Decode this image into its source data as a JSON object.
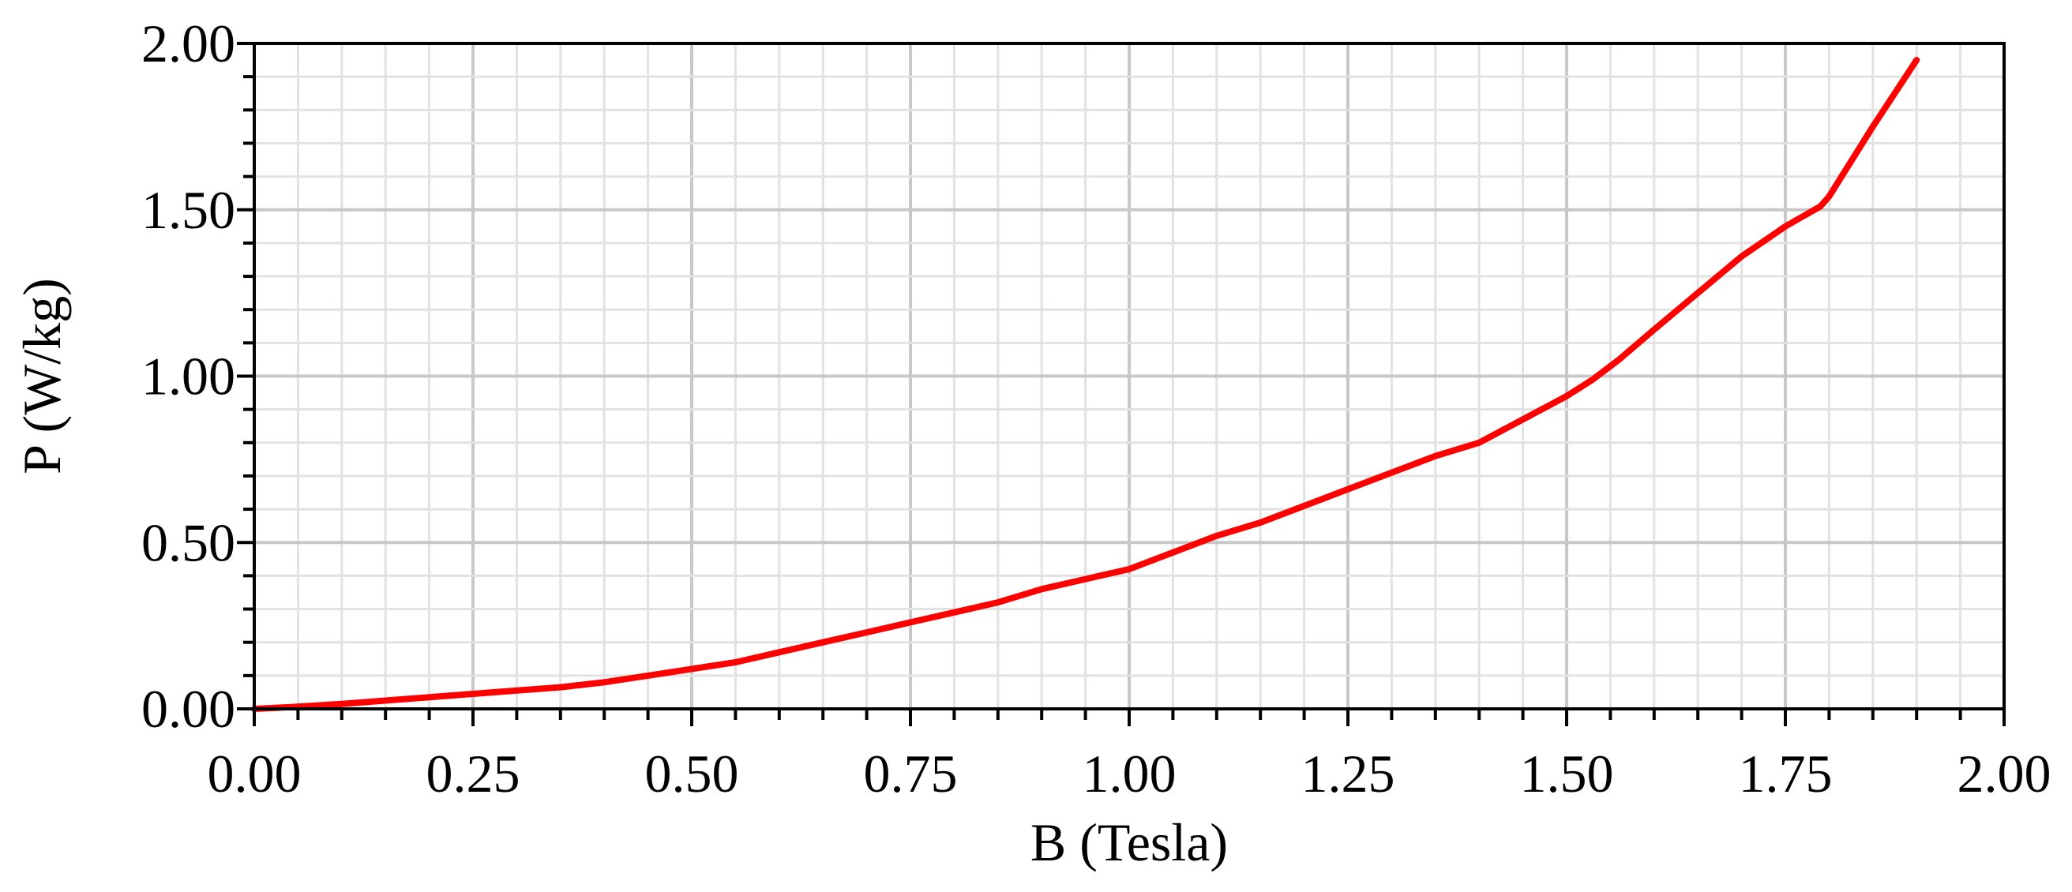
{
  "chart_data": {
    "type": "line",
    "xlabel": "B (Tesla)",
    "ylabel": "P (W/kg)",
    "xlim": [
      0,
      2
    ],
    "ylim": [
      0,
      2
    ],
    "x_major_ticks": [
      0,
      0.25,
      0.5,
      0.75,
      1.0,
      1.25,
      1.5,
      1.75,
      2.0
    ],
    "x_tick_labels": [
      "0.00",
      "0.25",
      "0.50",
      "0.75",
      "1.00",
      "1.25",
      "1.50",
      "1.75",
      "2.00"
    ],
    "y_major_ticks": [
      0,
      0.5,
      1.0,
      1.5,
      2.0
    ],
    "y_tick_labels": [
      "0.00",
      "0.50",
      "1.00",
      "1.50",
      "2.00"
    ],
    "x_minor_step": 0.05,
    "y_minor_step": 0.1,
    "grid": true,
    "colors": {
      "series": "#ff0000",
      "grid_major": "#c8c8c8",
      "grid_minor": "#e2e2e2",
      "axis": "#000000"
    },
    "series": [
      {
        "x": [
          0.0,
          0.04,
          0.1,
          0.15,
          0.2,
          0.25,
          0.3,
          0.35,
          0.4,
          0.45,
          0.5,
          0.55,
          0.6,
          0.65,
          0.7,
          0.75,
          0.8,
          0.85,
          0.9,
          0.95,
          1.0,
          1.05,
          1.1,
          1.15,
          1.2,
          1.25,
          1.3,
          1.35,
          1.4,
          1.45,
          1.5,
          1.53,
          1.56,
          1.6,
          1.65,
          1.7,
          1.75,
          1.79,
          1.8,
          1.85,
          1.9
        ],
        "y": [
          0.0,
          0.005,
          0.015,
          0.025,
          0.035,
          0.045,
          0.055,
          0.065,
          0.08,
          0.1,
          0.12,
          0.14,
          0.17,
          0.2,
          0.23,
          0.26,
          0.29,
          0.32,
          0.36,
          0.39,
          0.42,
          0.47,
          0.52,
          0.56,
          0.61,
          0.66,
          0.71,
          0.76,
          0.8,
          0.87,
          0.94,
          0.99,
          1.05,
          1.14,
          1.25,
          1.36,
          1.45,
          1.51,
          1.54,
          1.75,
          1.95
        ]
      }
    ]
  }
}
